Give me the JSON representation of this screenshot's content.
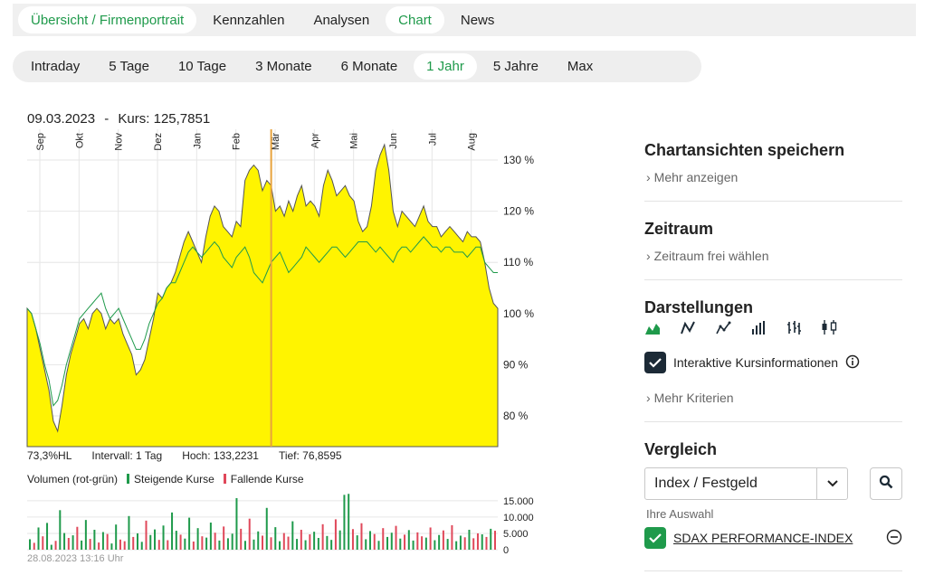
{
  "top_tabs": [
    {
      "label": "Übersicht / Firmenportrait",
      "active": false,
      "green": true
    },
    {
      "label": "Kennzahlen",
      "active": false
    },
    {
      "label": "Analysen",
      "active": false
    },
    {
      "label": "Chart",
      "active": true
    },
    {
      "label": "News",
      "active": false
    }
  ],
  "ranges": [
    "Intraday",
    "5 Tage",
    "10 Tage",
    "3 Monate",
    "6 Monate",
    "1 Jahr",
    "5 Jahre",
    "Max"
  ],
  "active_range": "1 Jahr",
  "chart_header": {
    "date": "09.03.2023",
    "separator": "-",
    "kurs_label": "Kurs:",
    "kurs_value": "125,7851"
  },
  "stats": {
    "hl": "73,3%HL",
    "intervall": "Intervall: 1 Tag",
    "hoch": "Hoch: 133,2231",
    "tief": "Tief: 76,8595"
  },
  "volume_legend": {
    "title": "Volumen (rot-grün)",
    "rising": "Steigende Kurse",
    "falling": "Fallende Kurse"
  },
  "timestamp": "28.08.2023 13:16 Uhr",
  "colors": {
    "accent_green": "#1f9a4b",
    "area_fill": "#fff400",
    "compare_line": "#1f9a4b",
    "volume_up": "#1f9a4b",
    "volume_down": "#e0485a",
    "cursor": "#e8a33d"
  },
  "sidebar": {
    "save_title": "Chartansichten speichern",
    "save_link": "Mehr anzeigen",
    "zeitraum_title": "Zeitraum",
    "zeitraum_link": "Zeitraum frei wählen",
    "darstellungen_title": "Darstellungen",
    "darstellungen_icons": [
      "area-chart-icon",
      "line-chart-icon",
      "line-markers-icon",
      "bar-chart-icon",
      "ohlc-chart-icon",
      "candlestick-chart-icon"
    ],
    "interaktiv_label": "Interaktive Kursinformationen",
    "interaktiv_checked": true,
    "kriterien_link": "Mehr Kriterien",
    "vergleich_title": "Vergleich",
    "vergleich_select": "Index / Festgeld",
    "auswahl_label": "Ihre Auswahl",
    "auswahl_item": "SDAX PERFORMANCE-INDEX",
    "auswahl_checked": true
  },
  "chart_data": {
    "type": "area",
    "months": [
      "Sep",
      "Okt",
      "Nov",
      "Dez",
      "Jan",
      "Feb",
      "Mär",
      "Apr",
      "Mai",
      "Jun",
      "Jul",
      "Aug"
    ],
    "y_ticks": [
      "80 %",
      "90 %",
      "100 %",
      "110 %",
      "120 %",
      "130 %"
    ],
    "ylim": [
      74,
      136
    ],
    "vol_ticks": [
      "15.000",
      "10.000",
      "5.000",
      "0"
    ],
    "vol_lim": [
      0,
      18000
    ],
    "cursor_index": 56,
    "series": [
      {
        "name": "Kurs",
        "values": [
          101,
          100,
          97,
          93,
          89,
          85,
          79,
          77,
          82,
          88,
          92,
          95,
          98,
          99,
          97,
          100,
          101,
          100,
          97,
          99,
          98,
          99,
          96,
          94,
          92,
          88,
          89,
          91,
          95,
          99,
          104,
          103,
          105,
          106,
          108,
          111,
          114,
          116,
          114,
          112,
          110,
          115,
          119,
          121,
          120,
          117,
          116,
          115,
          118,
          117,
          126,
          128,
          129,
          128,
          124,
          126,
          125,
          120,
          121,
          119,
          122,
          120,
          123,
          125,
          121,
          122,
          121,
          119,
          125,
          128,
          126,
          123,
          124,
          125,
          123,
          122,
          118,
          116,
          117,
          121,
          128,
          131,
          133,
          128,
          120,
          117,
          120,
          119,
          118,
          117,
          119,
          121,
          118,
          117,
          117,
          115,
          116,
          117,
          116,
          115,
          114,
          116,
          115,
          115,
          114,
          110,
          105,
          102,
          101
        ]
      },
      {
        "name": "Vergleich",
        "values": [
          101,
          100,
          97,
          94,
          90,
          87,
          82,
          83,
          86,
          90,
          93,
          96,
          99,
          100,
          101,
          102,
          103,
          104,
          101,
          99,
          100,
          101,
          99,
          97,
          95,
          93,
          93,
          95,
          98,
          100,
          102,
          103,
          105,
          106,
          106,
          108,
          110,
          112,
          113,
          112,
          111,
          112,
          113,
          114,
          113,
          111,
          110,
          109,
          111,
          112,
          113,
          111,
          108,
          107,
          106,
          108,
          110,
          111,
          112,
          110,
          108,
          109,
          110,
          111,
          113,
          112,
          111,
          110,
          111,
          112,
          113,
          113,
          112,
          111,
          112,
          113,
          114,
          114,
          114,
          113,
          112,
          113,
          112,
          111,
          110,
          112,
          113,
          113,
          112,
          113,
          114,
          115,
          114,
          113,
          113,
          112,
          113,
          113,
          112,
          112,
          112,
          111,
          112,
          113,
          113,
          110,
          109,
          108,
          108
        ]
      }
    ],
    "volume": [
      3200,
      2100,
      6800,
      4100,
      8200,
      1500,
      2700,
      12100,
      5100,
      3600,
      4400,
      7000,
      2800,
      9100,
      3300,
      6100,
      2200,
      5400,
      4800,
      1900,
      7700,
      3100,
      2600,
      10300,
      3900,
      5000,
      2400,
      8900,
      4500,
      6200,
      3000,
      7400,
      2900,
      11400,
      5800,
      4600,
      3400,
      9800,
      2500,
      6600,
      4100,
      3700,
      8300,
      5200,
      2800,
      7100,
      3500,
      4900,
      15800,
      6400,
      2700,
      9500,
      3100,
      5600,
      4300,
      12800,
      3800,
      6900,
      2600,
      5100,
      4000,
      8700,
      3300,
      6100,
      2900,
      4700,
      5500,
      3600,
      7800,
      4200,
      3000,
      9300,
      5900,
      16800,
      17100,
      6300,
      4400,
      8100,
      3200,
      5700,
      4800,
      2700,
      6600,
      3900,
      5200,
      7300,
      3400,
      4600,
      6000,
      2800,
      5300,
      4100,
      3700,
      6800,
      2900,
      4500,
      5900,
      3300,
      7500,
      2600,
      4300,
      3800,
      6100,
      3500,
      5000,
      4700,
      3900,
      6400,
      5800
    ],
    "volume_up": [
      1,
      0,
      1,
      0,
      1,
      1,
      0,
      1,
      1,
      0,
      1,
      0,
      1,
      1,
      0,
      1,
      0,
      1,
      0,
      1,
      1,
      0,
      0,
      1,
      0,
      1,
      1,
      0,
      1,
      1,
      0,
      1,
      0,
      1,
      1,
      0,
      1,
      1,
      0,
      1,
      0,
      1,
      1,
      0,
      1,
      0,
      1,
      1,
      1,
      0,
      1,
      0,
      1,
      1,
      0,
      1,
      0,
      1,
      1,
      0,
      0,
      1,
      1,
      0,
      1,
      0,
      1,
      1,
      0,
      1,
      1,
      0,
      1,
      1,
      1,
      0,
      1,
      0,
      1,
      1,
      0,
      1,
      0,
      1,
      1,
      0,
      1,
      0,
      1,
      1,
      0,
      0,
      1,
      0,
      1,
      1,
      0,
      1,
      0,
      1,
      1,
      0,
      1,
      0,
      0,
      1,
      0,
      1,
      0
    ]
  }
}
